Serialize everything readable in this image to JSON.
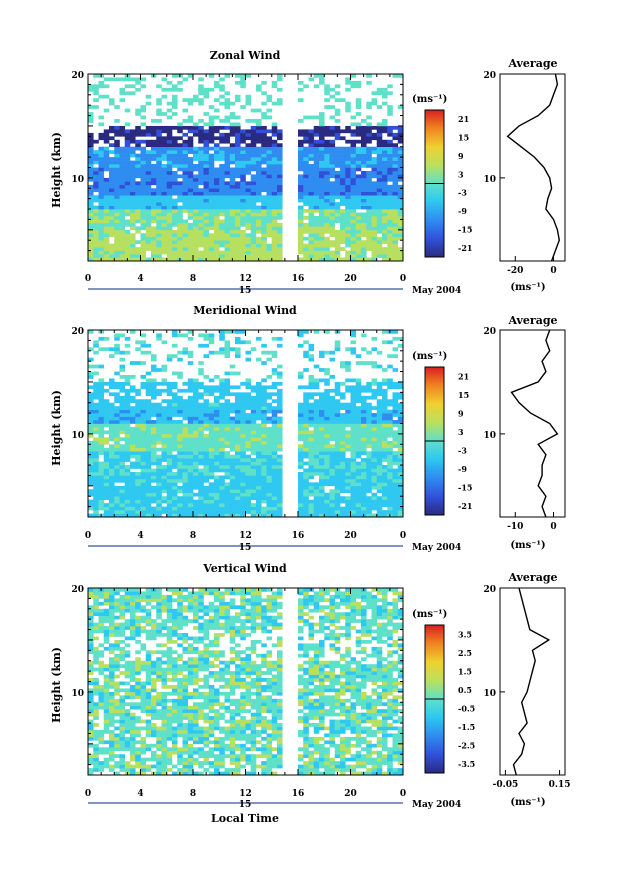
{
  "figure": {
    "date_label": "May 2004",
    "xaxis_title": "Local Time",
    "unit_label": "(ms⁻¹)"
  },
  "chart_data": [
    {
      "type": "heatmap",
      "title": "Zonal Wind",
      "ylabel": "Height (km)",
      "y_ticks": [
        10,
        20
      ],
      "ylim": [
        2,
        20
      ],
      "x_ticks": [
        "0",
        "4",
        "8",
        "12",
        "16",
        "20",
        "0"
      ],
      "xlim": [
        0,
        24
      ],
      "day_label": "15",
      "colorbar_ticks": [
        "21",
        "15",
        "9",
        "3",
        "-3",
        "-9",
        "-15",
        "-21"
      ],
      "colorbar_range": [
        -24,
        24
      ],
      "height_structure": [
        {
          "z_from": 2,
          "z_to": 5,
          "value": 4
        },
        {
          "z_from": 5,
          "z_to": 7,
          "value": 2
        },
        {
          "z_from": 7,
          "z_to": 8.5,
          "value": -6
        },
        {
          "z_from": 8.5,
          "z_to": 11,
          "value": -12
        },
        {
          "z_from": 11,
          "z_to": 13,
          "value": -9
        },
        {
          "z_from": 13,
          "z_to": 15,
          "value": -20
        },
        {
          "z_from": 15,
          "z_to": 20,
          "value": 0
        }
      ],
      "average_profile": {
        "title": "Average",
        "xlabel": "(ms⁻¹)",
        "x_ticks": [
          "-20",
          "0"
        ],
        "xlim": [
          -28,
          6
        ],
        "y_ticks": [
          "10",
          "20"
        ],
        "height_km": [
          2,
          3,
          4,
          5,
          6,
          7,
          8,
          9,
          10,
          11,
          12,
          13,
          14,
          15,
          16,
          17,
          18,
          19,
          20
        ],
        "values": [
          -1,
          1,
          3,
          2,
          0,
          -4,
          -3,
          -1,
          -2,
          -5,
          -10,
          -17,
          -24,
          -18,
          -8,
          -2,
          0,
          2,
          1
        ]
      }
    },
    {
      "type": "heatmap",
      "title": "Meridional Wind",
      "ylabel": "Height (km)",
      "y_ticks": [
        10,
        20
      ],
      "ylim": [
        2,
        20
      ],
      "x_ticks": [
        "0",
        "4",
        "8",
        "12",
        "16",
        "20",
        "0"
      ],
      "xlim": [
        0,
        24
      ],
      "day_label": "15",
      "colorbar_ticks": [
        "21",
        "15",
        "9",
        "3",
        "-3",
        "-9",
        "-15",
        "-21"
      ],
      "colorbar_range": [
        -24,
        24
      ],
      "height_structure": [
        {
          "z_from": 2,
          "z_to": 6,
          "value": -4
        },
        {
          "z_from": 6,
          "z_to": 8.5,
          "value": -3
        },
        {
          "z_from": 8.5,
          "z_to": 11,
          "value": 1
        },
        {
          "z_from": 11,
          "z_to": 12.5,
          "value": -7
        },
        {
          "z_from": 12.5,
          "z_to": 15,
          "value": -5
        },
        {
          "z_from": 15,
          "z_to": 20,
          "value": -2
        }
      ],
      "average_profile": {
        "title": "Average",
        "xlabel": "(ms⁻¹)",
        "x_ticks": [
          "-10",
          "0"
        ],
        "xlim": [
          -14,
          3
        ],
        "y_ticks": [
          "10",
          "20"
        ],
        "height_km": [
          2,
          3,
          4,
          5,
          6,
          7,
          8,
          9,
          10,
          11,
          12,
          13,
          14,
          15,
          16,
          17,
          18,
          19,
          20
        ],
        "values": [
          -2,
          -3,
          -2,
          -4,
          -3,
          -3,
          -2,
          -4,
          1,
          -1,
          -6,
          -9,
          -11,
          -4,
          -2,
          -3,
          -1,
          -2,
          -1
        ]
      }
    },
    {
      "type": "heatmap",
      "title": "Vertical Wind",
      "ylabel": "Height (km)",
      "y_ticks": [
        10,
        20
      ],
      "ylim": [
        2,
        20
      ],
      "x_ticks": [
        "0",
        "4",
        "8",
        "12",
        "16",
        "20",
        "0"
      ],
      "xlim": [
        0,
        24
      ],
      "day_label": "15",
      "colorbar_ticks": [
        "3.5",
        "2.5",
        "1.5",
        "0.5",
        "-0.5",
        "-1.5",
        "-2.5",
        "-3.5"
      ],
      "colorbar_range": [
        -4,
        4
      ],
      "height_structure": [
        {
          "z_from": 2,
          "z_to": 20,
          "value": 0
        }
      ],
      "average_profile": {
        "title": "Average",
        "xlabel": "(ms⁻¹)",
        "x_ticks": [
          "-0.05",
          "0.15"
        ],
        "xlim": [
          -0.07,
          0.17
        ],
        "y_ticks": [
          "10",
          "20"
        ],
        "height_km": [
          2,
          3,
          4,
          5,
          6,
          7,
          8,
          9,
          10,
          11,
          12,
          13,
          14,
          15,
          16,
          17,
          18,
          19,
          20
        ],
        "values": [
          -0.01,
          -0.02,
          0.01,
          0.02,
          0.0,
          0.03,
          0.02,
          0.01,
          0.03,
          0.04,
          0.05,
          0.06,
          0.05,
          0.11,
          0.04,
          0.03,
          0.02,
          0.01,
          0.0
        ]
      }
    }
  ]
}
